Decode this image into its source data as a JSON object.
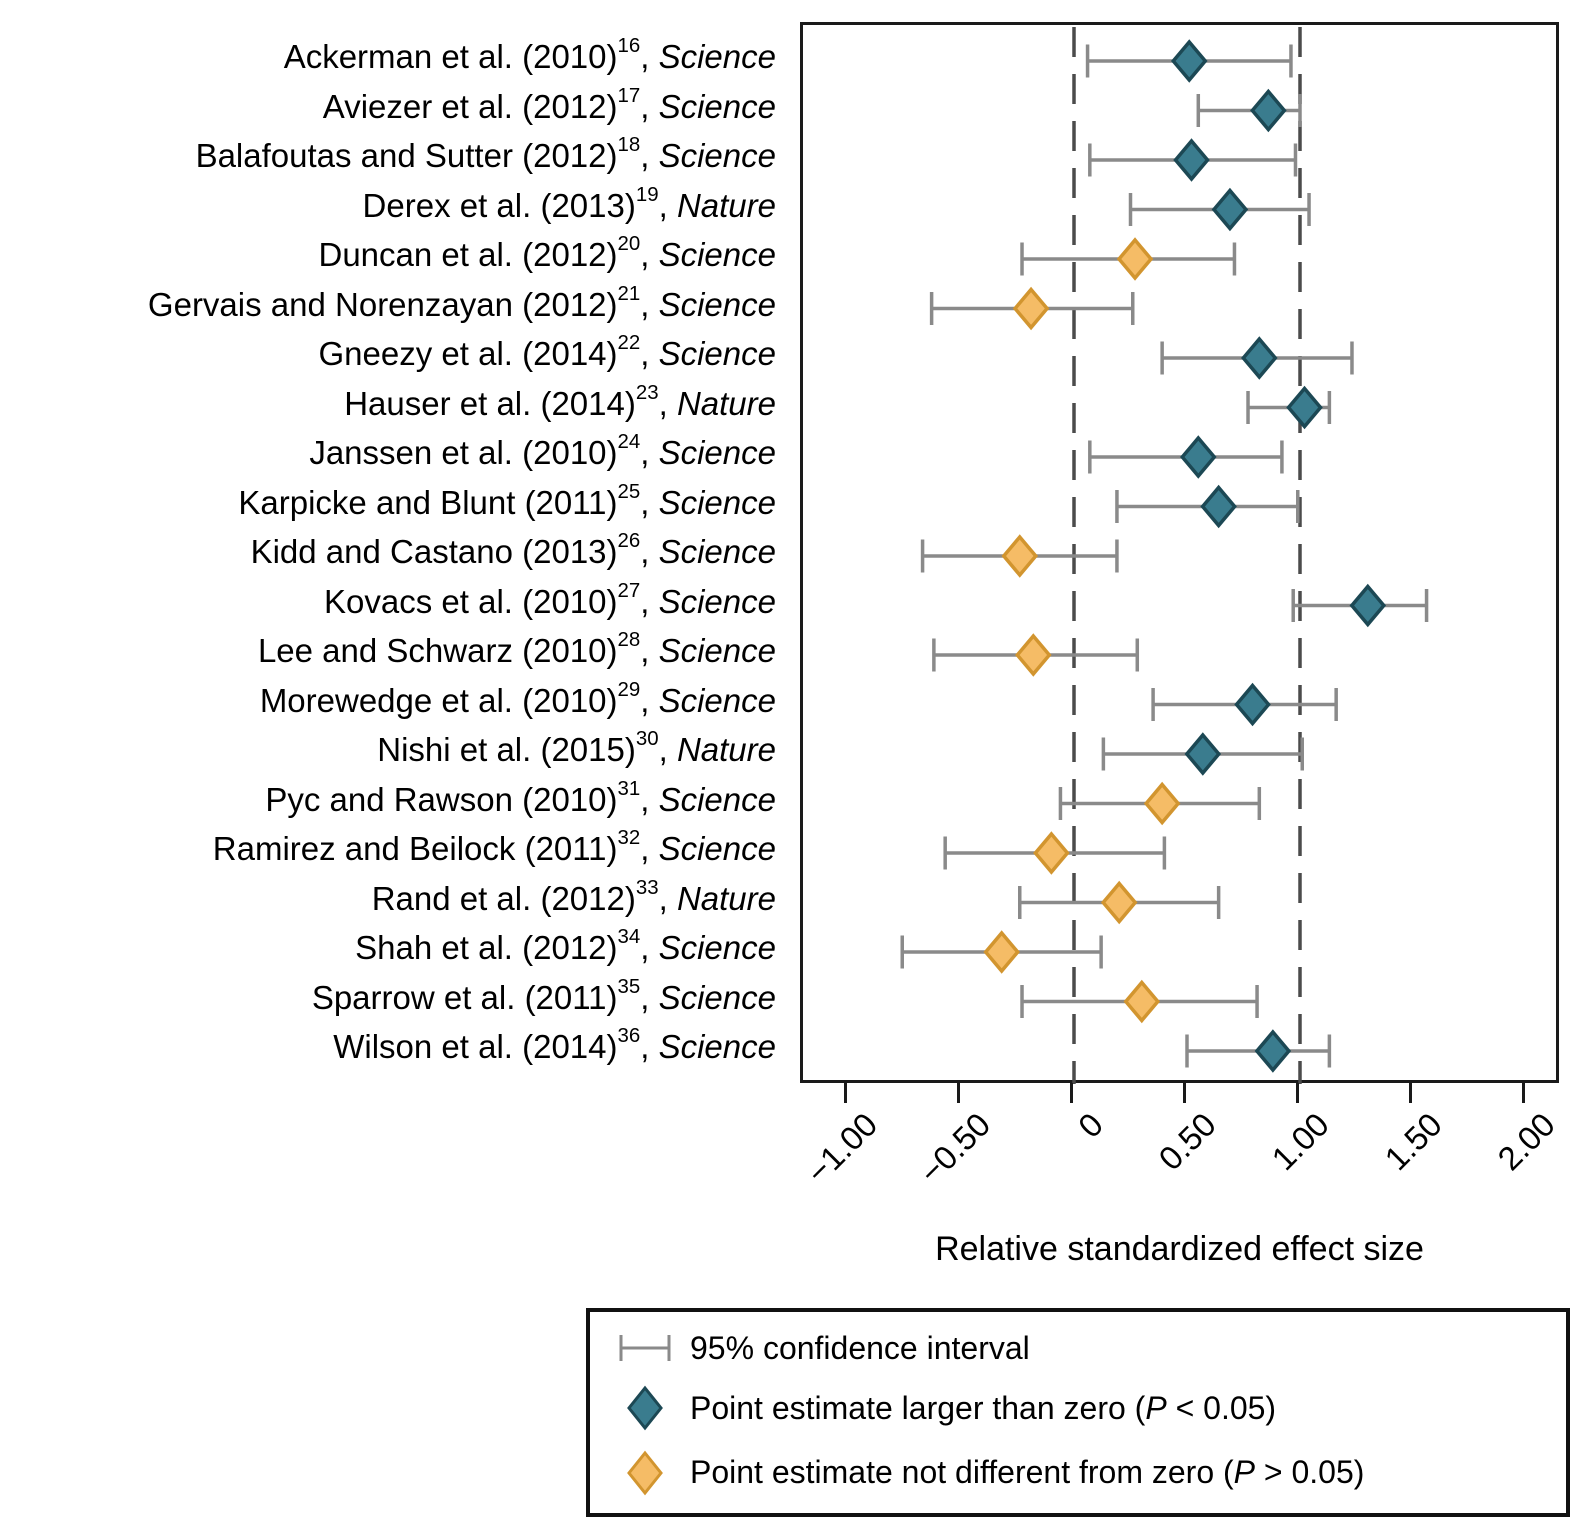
{
  "chart_data": {
    "type": "forest",
    "title": "",
    "xlabel": "Relative standardized effect size",
    "x_ticks": [
      -1.0,
      -0.5,
      0,
      0.5,
      1.0,
      1.5,
      2.0
    ],
    "x_tick_labels": [
      "−1.00",
      "−0.50",
      "0",
      "0.50",
      "1.00",
      "1.50",
      "2.00"
    ],
    "xlim": [
      -1.2,
      2.16
    ],
    "reference_lines": [
      0,
      1
    ],
    "grid": false,
    "legend_position": "bottom",
    "colors": {
      "significant_fill": "#3A7C8E",
      "significant_border": "#1C4854",
      "nonsignificant_fill": "#F5BC66",
      "nonsignificant_border": "#D2952F",
      "ci_line": "#8A8A8A",
      "reference_line": "#4B4B4B",
      "frame": "#1a1a1a"
    },
    "studies": [
      {
        "label": "Ackerman et al. (2010)",
        "ref": "16",
        "journal": "Science",
        "estimate": 0.51,
        "ci_low": 0.06,
        "ci_high": 0.96,
        "significant": true
      },
      {
        "label": "Aviezer et al. (2012)",
        "ref": "17",
        "journal": "Science",
        "estimate": 0.86,
        "ci_low": 0.55,
        "ci_high": 1.0,
        "significant": true
      },
      {
        "label": "Balafoutas and Sutter (2012)",
        "ref": "18",
        "journal": "Science",
        "estimate": 0.52,
        "ci_low": 0.07,
        "ci_high": 0.98,
        "significant": true
      },
      {
        "label": "Derex et al. (2013)",
        "ref": "19",
        "journal": "Nature",
        "estimate": 0.69,
        "ci_low": 0.25,
        "ci_high": 1.04,
        "significant": true
      },
      {
        "label": "Duncan et al. (2012)",
        "ref": "20",
        "journal": "Science",
        "estimate": 0.27,
        "ci_low": -0.23,
        "ci_high": 0.71,
        "significant": false
      },
      {
        "label": "Gervais and Norenzayan (2012)",
        "ref": "21",
        "journal": "Science",
        "estimate": -0.19,
        "ci_low": -0.63,
        "ci_high": 0.26,
        "significant": false
      },
      {
        "label": "Gneezy et al. (2014)",
        "ref": "22",
        "journal": "Science",
        "estimate": 0.82,
        "ci_low": 0.39,
        "ci_high": 1.23,
        "significant": true
      },
      {
        "label": "Hauser et al. (2014)",
        "ref": "23",
        "journal": "Nature",
        "estimate": 1.02,
        "ci_low": 0.77,
        "ci_high": 1.13,
        "significant": true
      },
      {
        "label": "Janssen et al. (2010)",
        "ref": "24",
        "journal": "Science",
        "estimate": 0.55,
        "ci_low": 0.07,
        "ci_high": 0.92,
        "significant": true
      },
      {
        "label": "Karpicke and Blunt (2011)",
        "ref": "25",
        "journal": "Science",
        "estimate": 0.64,
        "ci_low": 0.19,
        "ci_high": 0.99,
        "significant": true
      },
      {
        "label": "Kidd and Castano (2013)",
        "ref": "26",
        "journal": "Science",
        "estimate": -0.24,
        "ci_low": -0.67,
        "ci_high": 0.19,
        "significant": false
      },
      {
        "label": "Kovacs et al. (2010)",
        "ref": "27",
        "journal": "Science",
        "estimate": 1.3,
        "ci_low": 0.97,
        "ci_high": 1.56,
        "significant": true
      },
      {
        "label": "Lee and Schwarz (2010)",
        "ref": "28",
        "journal": "Science",
        "estimate": -0.18,
        "ci_low": -0.62,
        "ci_high": 0.28,
        "significant": false
      },
      {
        "label": "Morewedge et al. (2010)",
        "ref": "29",
        "journal": "Science",
        "estimate": 0.79,
        "ci_low": 0.35,
        "ci_high": 1.16,
        "significant": true
      },
      {
        "label": "Nishi et al. (2015)",
        "ref": "30",
        "journal": "Nature",
        "estimate": 0.57,
        "ci_low": 0.13,
        "ci_high": 1.01,
        "significant": true
      },
      {
        "label": "Pyc and Rawson (2010)",
        "ref": "31",
        "journal": "Science",
        "estimate": 0.39,
        "ci_low": -0.06,
        "ci_high": 0.82,
        "significant": false
      },
      {
        "label": "Ramirez and Beilock (2011)",
        "ref": "32",
        "journal": "Science",
        "estimate": -0.1,
        "ci_low": -0.57,
        "ci_high": 0.4,
        "significant": false
      },
      {
        "label": "Rand et al. (2012)",
        "ref": "33",
        "journal": "Nature",
        "estimate": 0.2,
        "ci_low": -0.24,
        "ci_high": 0.64,
        "significant": false
      },
      {
        "label": "Shah et al. (2012)",
        "ref": "34",
        "journal": "Science",
        "estimate": -0.32,
        "ci_low": -0.76,
        "ci_high": 0.12,
        "significant": false
      },
      {
        "label": "Sparrow et al. (2011)",
        "ref": "35",
        "journal": "Science",
        "estimate": 0.3,
        "ci_low": -0.23,
        "ci_high": 0.81,
        "significant": false
      },
      {
        "label": "Wilson et al. (2014)",
        "ref": "36",
        "journal": "Science",
        "estimate": 0.88,
        "ci_low": 0.5,
        "ci_high": 1.13,
        "significant": true
      }
    ],
    "legend": [
      {
        "icon": "ci-interval-icon",
        "parts": [
          {
            "t": "95% confidence interval"
          }
        ]
      },
      {
        "icon": "significant-diamond-icon",
        "parts": [
          {
            "t": "Point estimate larger than zero ("
          },
          {
            "t": "P",
            "italic": true
          },
          {
            "t": " < 0.05)"
          }
        ]
      },
      {
        "icon": "nonsignificant-diamond-icon",
        "parts": [
          {
            "t": "Point estimate not different from zero ("
          },
          {
            "t": "P",
            "italic": true
          },
          {
            "t": " > 0.05)"
          }
        ]
      }
    ]
  }
}
